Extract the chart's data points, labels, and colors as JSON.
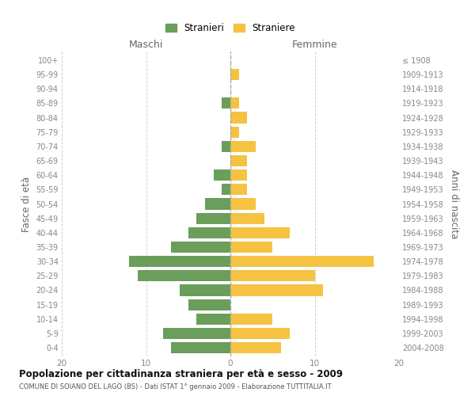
{
  "age_groups": [
    "0-4",
    "5-9",
    "10-14",
    "15-19",
    "20-24",
    "25-29",
    "30-34",
    "35-39",
    "40-44",
    "45-49",
    "50-54",
    "55-59",
    "60-64",
    "65-69",
    "70-74",
    "75-79",
    "80-84",
    "85-89",
    "90-94",
    "95-99",
    "100+"
  ],
  "birth_years": [
    "2004-2008",
    "1999-2003",
    "1994-1998",
    "1989-1993",
    "1984-1988",
    "1979-1983",
    "1974-1978",
    "1969-1973",
    "1964-1968",
    "1959-1963",
    "1954-1958",
    "1949-1953",
    "1944-1948",
    "1939-1943",
    "1934-1938",
    "1929-1933",
    "1924-1928",
    "1919-1923",
    "1914-1918",
    "1909-1913",
    "≤ 1908"
  ],
  "maschi": [
    7,
    8,
    4,
    5,
    6,
    11,
    12,
    7,
    5,
    4,
    3,
    1,
    2,
    0,
    1,
    0,
    0,
    1,
    0,
    0,
    0
  ],
  "femmine": [
    6,
    7,
    5,
    0,
    11,
    10,
    17,
    5,
    7,
    4,
    3,
    2,
    2,
    2,
    3,
    1,
    2,
    1,
    0,
    1,
    0
  ],
  "maschi_color": "#6a9e5b",
  "femmine_color": "#f5c242",
  "background_color": "#ffffff",
  "grid_color": "#d0d0d0",
  "title": "Popolazione per cittadinanza straniera per età e sesso - 2009",
  "subtitle": "COMUNE DI SOIANO DEL LAGO (BS) - Dati ISTAT 1° gennaio 2009 - Elaborazione TUTTITALIA.IT",
  "xlabel_left": "Maschi",
  "xlabel_right": "Femmine",
  "ylabel_left": "Fasce di età",
  "ylabel_right": "Anni di nascita",
  "legend_stranieri": "Stranieri",
  "legend_straniere": "Straniere",
  "xlim": 20
}
